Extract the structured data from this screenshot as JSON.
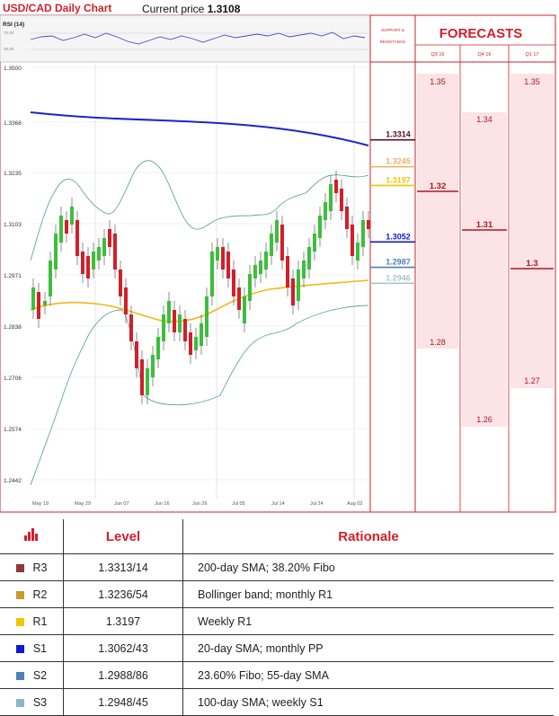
{
  "header": {
    "title": "USD/CAD Daily Chart",
    "price_label": "Current price",
    "price_value": "1.3108"
  },
  "chart_data": {
    "type": "candlestick",
    "indicator_label": "RSI (14)",
    "rsi_ticks": [
      "70.00",
      "30.00"
    ],
    "y_ticks": [
      "1.3500",
      "1.3368",
      "1.3235",
      "1.3103",
      "1.2971",
      "1.2838",
      "1.2706",
      "1.2574",
      "1.2442"
    ],
    "ylim": [
      1.2442,
      1.35
    ],
    "x_ticks": [
      "May 19",
      "May 29",
      "Jun 07",
      "Jun 16",
      "Jun 26",
      "Jul 05",
      "Jul 14",
      "Jul 24",
      "Aug 02"
    ],
    "series": [
      {
        "name": "200-day SMA",
        "color": "#1b27c8",
        "values": [
          1.333,
          1.3275
        ]
      },
      {
        "name": "Bollinger band",
        "color": "#5fa89e"
      },
      {
        "name": "Moving average",
        "color": "#f3b719"
      }
    ],
    "support_resistance_title": "SUPPORT & RESISTANCE",
    "levels": [
      {
        "value": "1.3314",
        "color": "#5a1020"
      },
      {
        "value": "1.3245",
        "color": "#e8b25a"
      },
      {
        "value": "1.3197",
        "color": "#f5c400"
      },
      {
        "value": "1.3052",
        "color": "#0c1ad0"
      },
      {
        "value": "1.2987",
        "color": "#4b80b8"
      },
      {
        "value": "1.2946",
        "color": "#a6c7c3"
      }
    ],
    "forecasts_title": "FORECASTS",
    "forecast_quarters": [
      "Q3 16",
      "Q4 16",
      "Q1 17"
    ],
    "forecasts": [
      {
        "quarter": "Q3 16",
        "high": "1.35",
        "mid": "1.32",
        "low": "1.28"
      },
      {
        "quarter": "Q4 16",
        "high": "1.34",
        "mid": "1.31",
        "low": "1.26"
      },
      {
        "quarter": "Q1 17",
        "high": "1.35",
        "mid": "1.3",
        "low": "1.27"
      }
    ]
  },
  "table": {
    "icon": "bar-chart-icon",
    "headers": [
      "Level",
      "Rationale"
    ],
    "rows": [
      {
        "name": "R3",
        "color": "#8c3a3a",
        "level": "1.3313/14",
        "rationale": "200-day SMA; 38.20% Fibo"
      },
      {
        "name": "R2",
        "color": "#c89a2a",
        "level": "1.3236/54",
        "rationale": "Bollinger band; monthly R1"
      },
      {
        "name": "R1",
        "color": "#f5c400",
        "level": "1.3197",
        "rationale": "Weekly R1"
      },
      {
        "name": "S1",
        "color": "#0c1ad0",
        "level": "1.3062/43",
        "rationale": "20-day SMA; monthly PP"
      },
      {
        "name": "S2",
        "color": "#4b80b8",
        "level": "1.2988/86",
        "rationale": "23.60% Fibo; 55-day SMA"
      },
      {
        "name": "S3",
        "color": "#8fb4c9",
        "level": "1.2948/45",
        "rationale": "100-day SMA; weekly S1"
      }
    ]
  }
}
